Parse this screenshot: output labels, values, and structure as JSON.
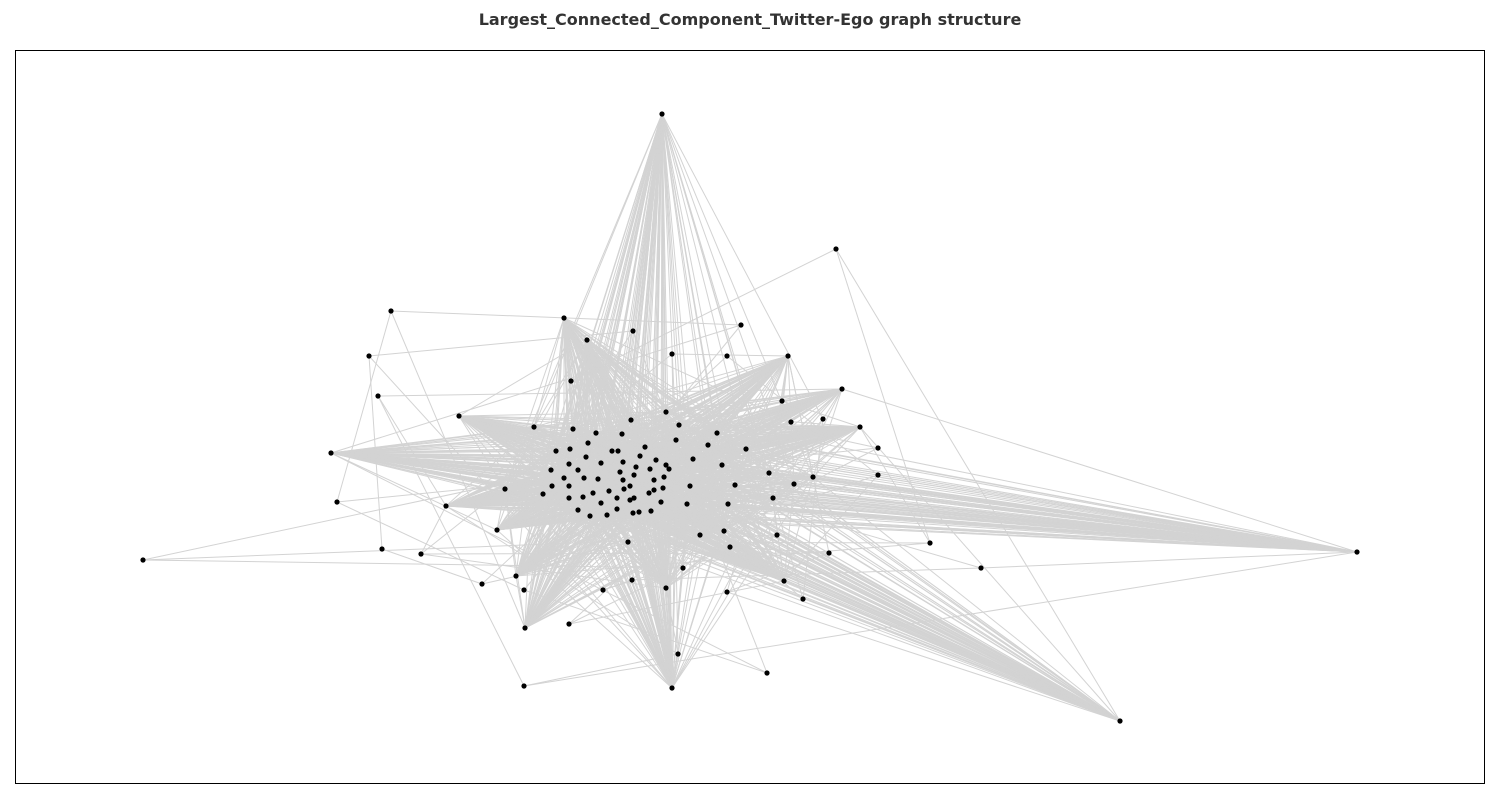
{
  "title": "Largest_Connected_Component_Twitter-Ego graph structure",
  "colors": {
    "edge": "#d3d3d3",
    "node": "#000000",
    "frame": "#000000",
    "title": "#333333",
    "background": "#ffffff"
  }
}
